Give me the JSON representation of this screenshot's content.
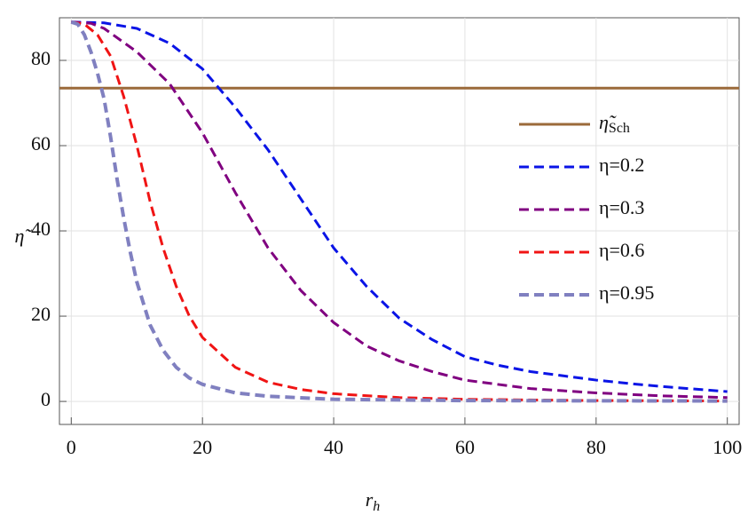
{
  "chart_data": {
    "type": "line",
    "xlabel": "r",
    "xlabel_subscript": "h",
    "ylabel": "η̃",
    "xlim": [
      -1.8,
      101.8
    ],
    "ylim": [
      -5.4,
      90
    ],
    "xticks": [
      0,
      20,
      40,
      60,
      80,
      100
    ],
    "yticks": [
      0,
      20,
      40,
      60,
      80
    ],
    "grid": true,
    "series": [
      {
        "name": "η̃",
        "name_subscript": "Sch",
        "color": "#9b6a3a",
        "dashed": false,
        "width": 3,
        "x": [
          -1.8,
          101.8
        ],
        "values": [
          73.5,
          73.5
        ]
      },
      {
        "name": "η=0.2",
        "color": "#0a14e6",
        "dashed": true,
        "width": 3,
        "x": [
          0,
          5,
          10,
          15,
          20,
          25,
          30,
          35,
          40,
          45,
          50,
          55,
          60,
          65,
          70,
          75,
          80,
          85,
          90,
          95,
          100
        ],
        "values": [
          89,
          88.8,
          87.5,
          84,
          78,
          69,
          59,
          47.5,
          36,
          27,
          19.5,
          14.5,
          10.5,
          8.5,
          7,
          6,
          5,
          4.2,
          3.5,
          2.9,
          2.3
        ]
      },
      {
        "name": "η=0.3",
        "color": "#800080",
        "dashed": true,
        "width": 3,
        "x": [
          0,
          3,
          5,
          10,
          15,
          20,
          25,
          30,
          35,
          40,
          45,
          50,
          55,
          60,
          70,
          80,
          90,
          100
        ],
        "values": [
          89,
          88.7,
          87.5,
          82,
          74.5,
          63,
          49,
          36,
          26,
          18.5,
          13,
          9.5,
          7,
          5,
          3,
          2,
          1.3,
          0.9
        ]
      },
      {
        "name": "η=0.6",
        "color": "#f01414",
        "dashed": true,
        "width": 3,
        "x": [
          0,
          2,
          4,
          6,
          8,
          10,
          12,
          14,
          16,
          18,
          20,
          25,
          30,
          35,
          40,
          50,
          60,
          80,
          100
        ],
        "values": [
          89,
          88.5,
          86,
          81,
          71.5,
          60,
          47,
          36,
          27,
          20,
          15,
          8,
          4.5,
          2.8,
          1.8,
          0.9,
          0.5,
          0.2,
          0.1
        ]
      },
      {
        "name": "η=0.95",
        "color": "#8080c0",
        "dashed": true,
        "width": 4,
        "x": [
          0,
          1,
          2,
          3,
          4,
          5,
          6,
          7,
          8,
          9,
          10,
          12,
          14,
          16,
          18,
          20,
          25,
          30,
          40,
          60,
          100
        ],
        "values": [
          89,
          88.5,
          86,
          82,
          77,
          71,
          62,
          52,
          43,
          35,
          28,
          18,
          12,
          8,
          5.5,
          4,
          2,
          1.2,
          0.5,
          0.2,
          0.1
        ]
      }
    ]
  }
}
